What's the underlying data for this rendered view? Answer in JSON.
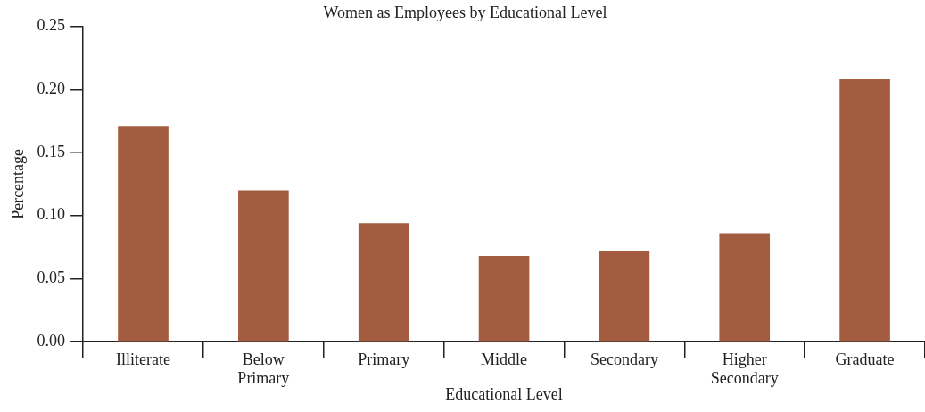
{
  "chart_data": {
    "type": "bar",
    "title": "Women as Employees by Educational Level",
    "xlabel": "Educational Level",
    "ylabel": "Percentage",
    "categories": [
      "Illiterate",
      "Below Primary",
      "Primary",
      "Middle",
      "Secondary",
      "Higher Secondary",
      "Graduate"
    ],
    "values": [
      0.171,
      0.12,
      0.094,
      0.068,
      0.072,
      0.086,
      0.208
    ],
    "color": "#a45c40",
    "ylim": [
      0,
      0.25
    ],
    "yticks": [
      {
        "value": 0,
        "label": "0.00"
      },
      {
        "value": 0.05,
        "label": "0.05"
      },
      {
        "value": 0.1,
        "label": "0.10"
      },
      {
        "value": 0.15,
        "label": "0.15"
      },
      {
        "value": 0.2,
        "label": "0.20"
      },
      {
        "value": 0.25,
        "label": "0.25"
      }
    ],
    "grid": false,
    "legend": false
  }
}
